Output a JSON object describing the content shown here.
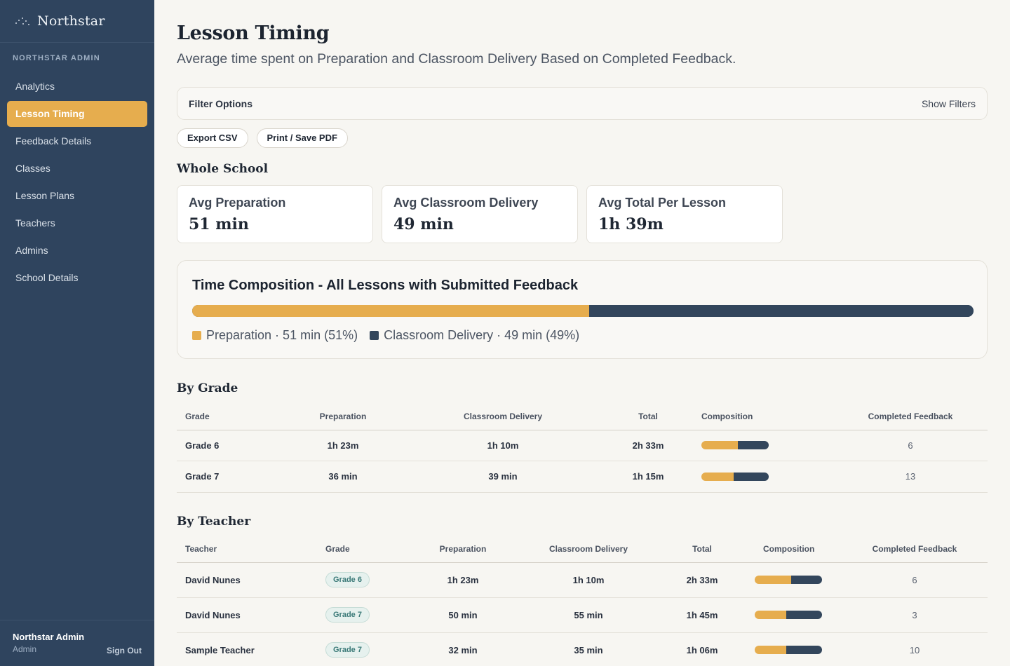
{
  "sidebar": {
    "brand": "Northstar",
    "section_label": "NORTHSTAR ADMIN",
    "items": [
      {
        "label": "Analytics"
      },
      {
        "label": "Lesson Timing"
      },
      {
        "label": "Feedback Details"
      },
      {
        "label": "Classes"
      },
      {
        "label": "Lesson Plans"
      },
      {
        "label": "Teachers"
      },
      {
        "label": "Admins"
      },
      {
        "label": "School Details"
      }
    ],
    "active_index": 1,
    "user_name": "Northstar Admin",
    "user_role": "Admin",
    "signout_label": "Sign Out"
  },
  "page": {
    "title": "Lesson Timing",
    "subtitle": "Average time spent on Preparation and Classroom Delivery Based on Completed Feedback."
  },
  "filter": {
    "title": "Filter Options",
    "toggle_label": "Show Filters"
  },
  "actions": {
    "export_csv": "Export CSV",
    "print_pdf": "Print / Save PDF"
  },
  "whole_school": {
    "heading": "Whole School",
    "cards": [
      {
        "label": "Avg Preparation",
        "value": "51 min"
      },
      {
        "label": "Avg Classroom Delivery",
        "value": "49 min"
      },
      {
        "label": "Avg Total Per Lesson",
        "value": "1h 39m"
      }
    ]
  },
  "composition": {
    "title": "Time Composition - All Lessons with Submitted Feedback",
    "prep_fraction": 0.508,
    "legend_prep": "Preparation · 51 min (51%)",
    "legend_delivery": "Classroom Delivery · 49 min (49%)"
  },
  "colors": {
    "preparation": "#e6ad4e",
    "delivery": "#33465c",
    "sidebar": "#2f445e"
  },
  "by_grade": {
    "heading": "By Grade",
    "columns": [
      "Grade",
      "Preparation",
      "Classroom Delivery",
      "Total",
      "Composition",
      "Completed Feedback"
    ],
    "rows": [
      {
        "grade": "Grade 6",
        "prep": "1h 23m",
        "delivery": "1h 10m",
        "total": "2h 33m",
        "prep_fraction": 0.54,
        "feedback": "6"
      },
      {
        "grade": "Grade 7",
        "prep": "36 min",
        "delivery": "39 min",
        "total": "1h 15m",
        "prep_fraction": 0.48,
        "feedback": "13"
      }
    ]
  },
  "by_teacher": {
    "heading": "By Teacher",
    "columns": [
      "Teacher",
      "Grade",
      "Preparation",
      "Classroom Delivery",
      "Total",
      "Composition",
      "Completed Feedback"
    ],
    "rows": [
      {
        "teacher": "David Nunes",
        "grade": "Grade 6",
        "prep": "1h 23m",
        "delivery": "1h 10m",
        "total": "2h 33m",
        "prep_fraction": 0.54,
        "feedback": "6"
      },
      {
        "teacher": "David Nunes",
        "grade": "Grade 7",
        "prep": "50 min",
        "delivery": "55 min",
        "total": "1h 45m",
        "prep_fraction": 0.47,
        "feedback": "3"
      },
      {
        "teacher": "Sample Teacher",
        "grade": "Grade 7",
        "prep": "32 min",
        "delivery": "35 min",
        "total": "1h 06m",
        "prep_fraction": 0.47,
        "feedback": "10"
      }
    ]
  }
}
